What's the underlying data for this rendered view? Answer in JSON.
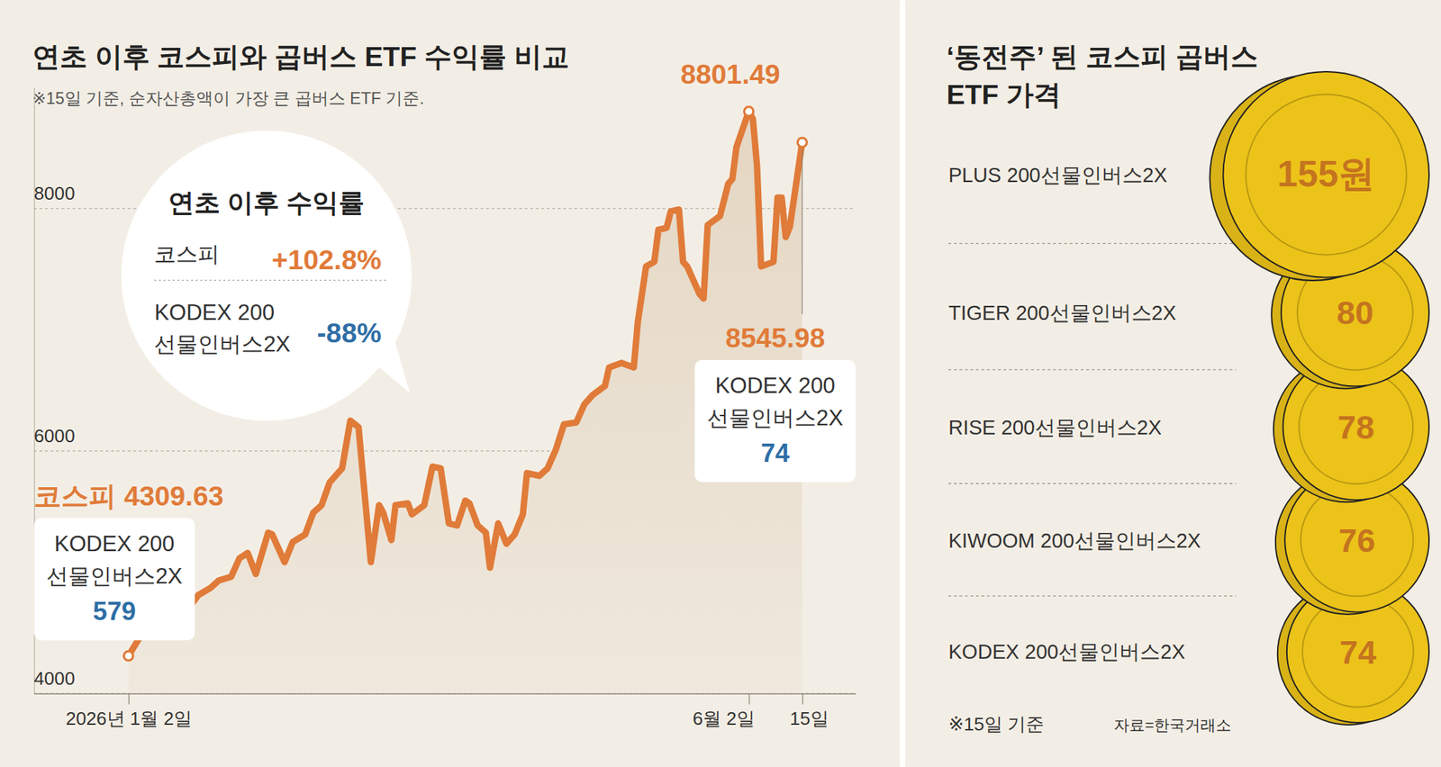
{
  "chart_data": [
    {
      "type": "line",
      "title": "연초 이후 코스피와 곱버스 ETF 수익률 비교",
      "subtitle": "※15일 기준, 순자산총액이 가장 큰 곱버스 ETF 기준.",
      "x": [
        "2026-01-02",
        "2026-01-05",
        "2026-01-08",
        "2026-01-10",
        "2026-01-13",
        "2026-01-17",
        "2026-01-19",
        "2026-01-22",
        "2026-01-24",
        "2026-01-27",
        "2026-01-29",
        "2026-01-31",
        "2026-02-02",
        "2026-02-05",
        "2026-02-06",
        "2026-02-09",
        "2026-02-11",
        "2026-02-14",
        "2026-02-16",
        "2026-02-18",
        "2026-02-20",
        "2026-02-23",
        "2026-02-25",
        "2026-02-27",
        "2026-03-02",
        "2026-03-04",
        "2026-03-05",
        "2026-03-07",
        "2026-03-08",
        "2026-03-11",
        "2026-03-12",
        "2026-03-15",
        "2026-03-17",
        "2026-03-19",
        "2026-03-21",
        "2026-03-23",
        "2026-03-25",
        "2026-03-26",
        "2026-03-28",
        "2026-03-30",
        "2026-03-31",
        "2026-04-02",
        "2026-04-04",
        "2026-04-06",
        "2026-04-08",
        "2026-04-09",
        "2026-04-12",
        "2026-04-14",
        "2026-04-16",
        "2026-04-18",
        "2026-04-21",
        "2026-04-23",
        "2026-04-25",
        "2026-04-28",
        "2026-04-29",
        "2026-05-02",
        "2026-05-05",
        "2026-05-06",
        "2026-05-08",
        "2026-05-10",
        "2026-05-11",
        "2026-05-13",
        "2026-05-14",
        "2026-05-16",
        "2026-05-17",
        "2026-05-18",
        "2026-05-21",
        "2026-05-22",
        "2026-05-23",
        "2026-05-26",
        "2026-05-28",
        "2026-05-29",
        "2026-05-30",
        "2026-06-02",
        "2026-06-03",
        "2026-06-04",
        "2026-06-05",
        "2026-06-08",
        "2026-06-09",
        "2026-06-10",
        "2026-06-11",
        "2026-06-12",
        "2026-06-15"
      ],
      "series": [
        {
          "name": "코스피",
          "color": "#e07b39",
          "values": [
            4309.63,
            4477,
            4492,
            4477,
            4568,
            4720,
            4811,
            4871,
            4932,
            4962,
            5114,
            5159,
            4985,
            5326,
            5311,
            5083,
            5250,
            5311,
            5492,
            5553,
            5742,
            5856,
            6250,
            6197,
            5083,
            5553,
            5492,
            5265,
            5553,
            5568,
            5477,
            5553,
            5871,
            5856,
            5402,
            5386,
            5591,
            5568,
            5386,
            5326,
            5038,
            5402,
            5235,
            5311,
            5477,
            5818,
            5795,
            5856,
            6008,
            6220,
            6235,
            6386,
            6462,
            6538,
            6689,
            6727,
            6689,
            7068,
            7523,
            7561,
            7826,
            7841,
            7977,
            7992,
            7561,
            7523,
            7296,
            7258,
            7864,
            7939,
            8205,
            8243,
            8508,
            8801.49,
            8740,
            8356,
            7523,
            7560,
            8091,
            8091,
            7765,
            7850,
            8545.98
          ]
        }
      ],
      "xlim": [
        "2025-12-10",
        "2026-06-28"
      ],
      "xticks": [
        {
          "value": "2026-01-02",
          "label": "2026년 1월 2일"
        },
        {
          "value": "2026-06-02",
          "label": "6월 2일"
        },
        {
          "value": "2026-06-15",
          "label": "15일"
        }
      ],
      "ylim": [
        4000,
        9000
      ],
      "yticks": [
        4000,
        6000,
        8000
      ],
      "grid": true,
      "annotations": [
        {
          "x": "2026-01-02",
          "label": "코스피 4309.63"
        },
        {
          "x": "2026-06-02",
          "label": "8801.49"
        },
        {
          "x": "2026-06-15",
          "label": "8545.98"
        }
      ],
      "boxes": [
        {
          "x": "2026-01-02",
          "name": "KODEX 200 선물인버스2X",
          "value": 579,
          "color": "#2f6ea5"
        },
        {
          "x": "2026-06-15",
          "name": "KODEX 200 선물인버스2X",
          "value": 74,
          "color": "#2f6ea5"
        }
      ],
      "callout": {
        "title": "연초 이후 수익률",
        "categories": [
          "코스피",
          "KODEX 200 선물인버스2X"
        ],
        "values": [
          102.8,
          -88
        ],
        "value_labels": [
          "+102.8%",
          "-88%"
        ],
        "colors": [
          "#e07b39",
          "#2f6ea5"
        ]
      }
    },
    {
      "type": "coin",
      "title": "‘동전주’ 된 코스피 곱버스 ETF 가격",
      "categories": [
        "PLUS 200선물인버스2X",
        "TIGER 200선물인버스2X",
        "RISE 200선물인버스2X",
        "KIWOOM 200선물인버스2X",
        "KODEX 200선물인버스2X"
      ],
      "values": [
        155,
        80,
        78,
        76,
        74
      ],
      "value_labels": [
        "155원",
        "80",
        "78",
        "76",
        "74"
      ],
      "data_labels": true,
      "color": "#ecc319",
      "note": "※15일 기준",
      "source": "자료=한국거래소"
    }
  ]
}
